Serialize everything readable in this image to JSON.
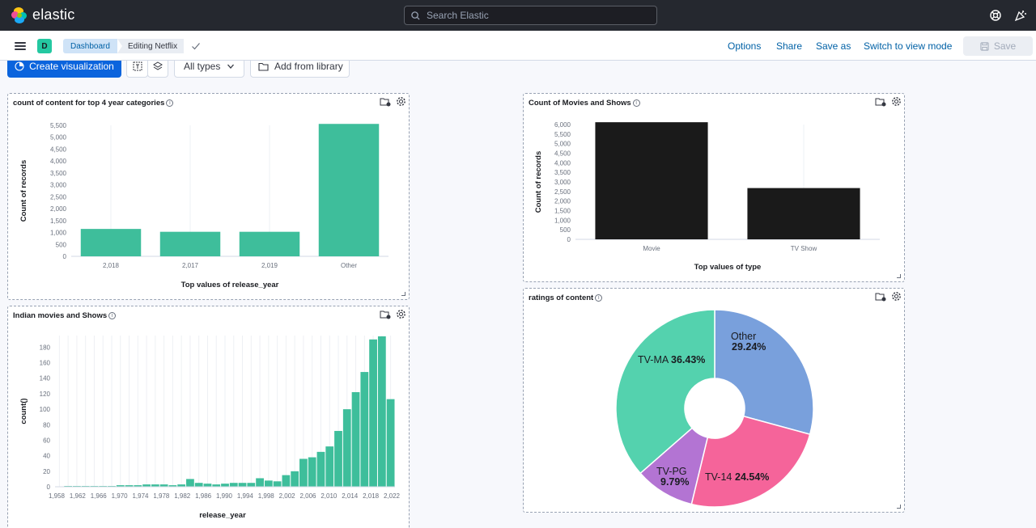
{
  "header": {
    "brand": "elastic",
    "search_placeholder": "Search Elastic"
  },
  "subbar": {
    "space_initial": "D",
    "breadcrumb_root": "Dashboard",
    "breadcrumb_current": "Editing Netflix",
    "options_label": "Options",
    "share_label": "Share",
    "save_as_label": "Save as",
    "view_mode_label": "Switch to view mode",
    "save_label": "Save"
  },
  "toolbar": {
    "create_label": "Create visualization",
    "types_label": "All types",
    "library_label": "Add from library"
  },
  "colors": {
    "accent": "#0b64dd",
    "teal": "#3ebe9b",
    "black": "#1a1a1a"
  },
  "panels": {
    "p1_title": "count of content for top 4 year categories",
    "p2_title": "Count of Movies and Shows",
    "p3_title": "Indian movies and Shows",
    "p4_title": "ratings of content"
  },
  "chart_data": [
    {
      "type": "bar",
      "title": "count of content for top 4 year categories",
      "xlabel": "Top values of release_year",
      "ylabel": "Count of records",
      "categories": [
        "2,018",
        "2,017",
        "2,019",
        "Other"
      ],
      "values": [
        1150,
        1030,
        1030,
        5560
      ],
      "ylim": [
        0,
        5500
      ],
      "yticks": [
        "0",
        "500",
        "1,000",
        "1,500",
        "2,000",
        "2,500",
        "3,000",
        "3,500",
        "4,000",
        "4,500",
        "5,000",
        "5,500"
      ],
      "color": "#3ebe9b"
    },
    {
      "type": "bar",
      "title": "Count of Movies and Shows",
      "xlabel": "Top values of type",
      "ylabel": "Count of records",
      "categories": [
        "Movie",
        "TV Show"
      ],
      "values": [
        6130,
        2680
      ],
      "ylim": [
        0,
        6000
      ],
      "yticks": [
        "0",
        "500",
        "1,000",
        "1,500",
        "2,000",
        "2,500",
        "3,000",
        "3,500",
        "4,000",
        "4,500",
        "5,000",
        "5,500",
        "6,000"
      ],
      "color": "#1a1a1a"
    },
    {
      "type": "bar",
      "title": "Indian movies and Shows",
      "xlabel": "release_year",
      "ylabel": "count()",
      "xticks": [
        "1,958",
        "1,962",
        "1,966",
        "1,970",
        "1,974",
        "1,978",
        "1,982",
        "1,986",
        "1,990",
        "1,994",
        "1,998",
        "2,002",
        "2,006",
        "2,010",
        "2,014",
        "2,018",
        "2,022"
      ],
      "yticks": [
        "0",
        "20",
        "40",
        "60",
        "80",
        "100",
        "120",
        "140",
        "160",
        "180"
      ],
      "values": [
        0,
        1,
        1,
        1,
        1,
        1,
        1,
        2,
        2,
        2,
        3,
        3,
        3,
        2,
        3,
        10,
        5,
        4,
        3,
        4,
        5,
        5,
        5,
        11,
        8,
        7,
        15,
        20,
        36,
        38,
        45,
        52,
        72,
        100,
        122,
        148,
        190,
        194,
        113
      ],
      "ylim": [
        0,
        195
      ],
      "color": "#3ebe9b"
    },
    {
      "type": "pie",
      "title": "ratings of content",
      "slices": [
        {
          "label": "Other",
          "pct": "29.24%",
          "value": 29.24,
          "color": "#79a0dc"
        },
        {
          "label": "TV-14",
          "pct": "24.54%",
          "value": 24.54,
          "color": "#f5649a"
        },
        {
          "label": "TV-PG",
          "pct": "9.79%",
          "value": 9.79,
          "color": "#b374d3"
        },
        {
          "label": "TV-MA",
          "pct": "36.43%",
          "value": 36.43,
          "color": "#54d2ae"
        }
      ]
    }
  ]
}
